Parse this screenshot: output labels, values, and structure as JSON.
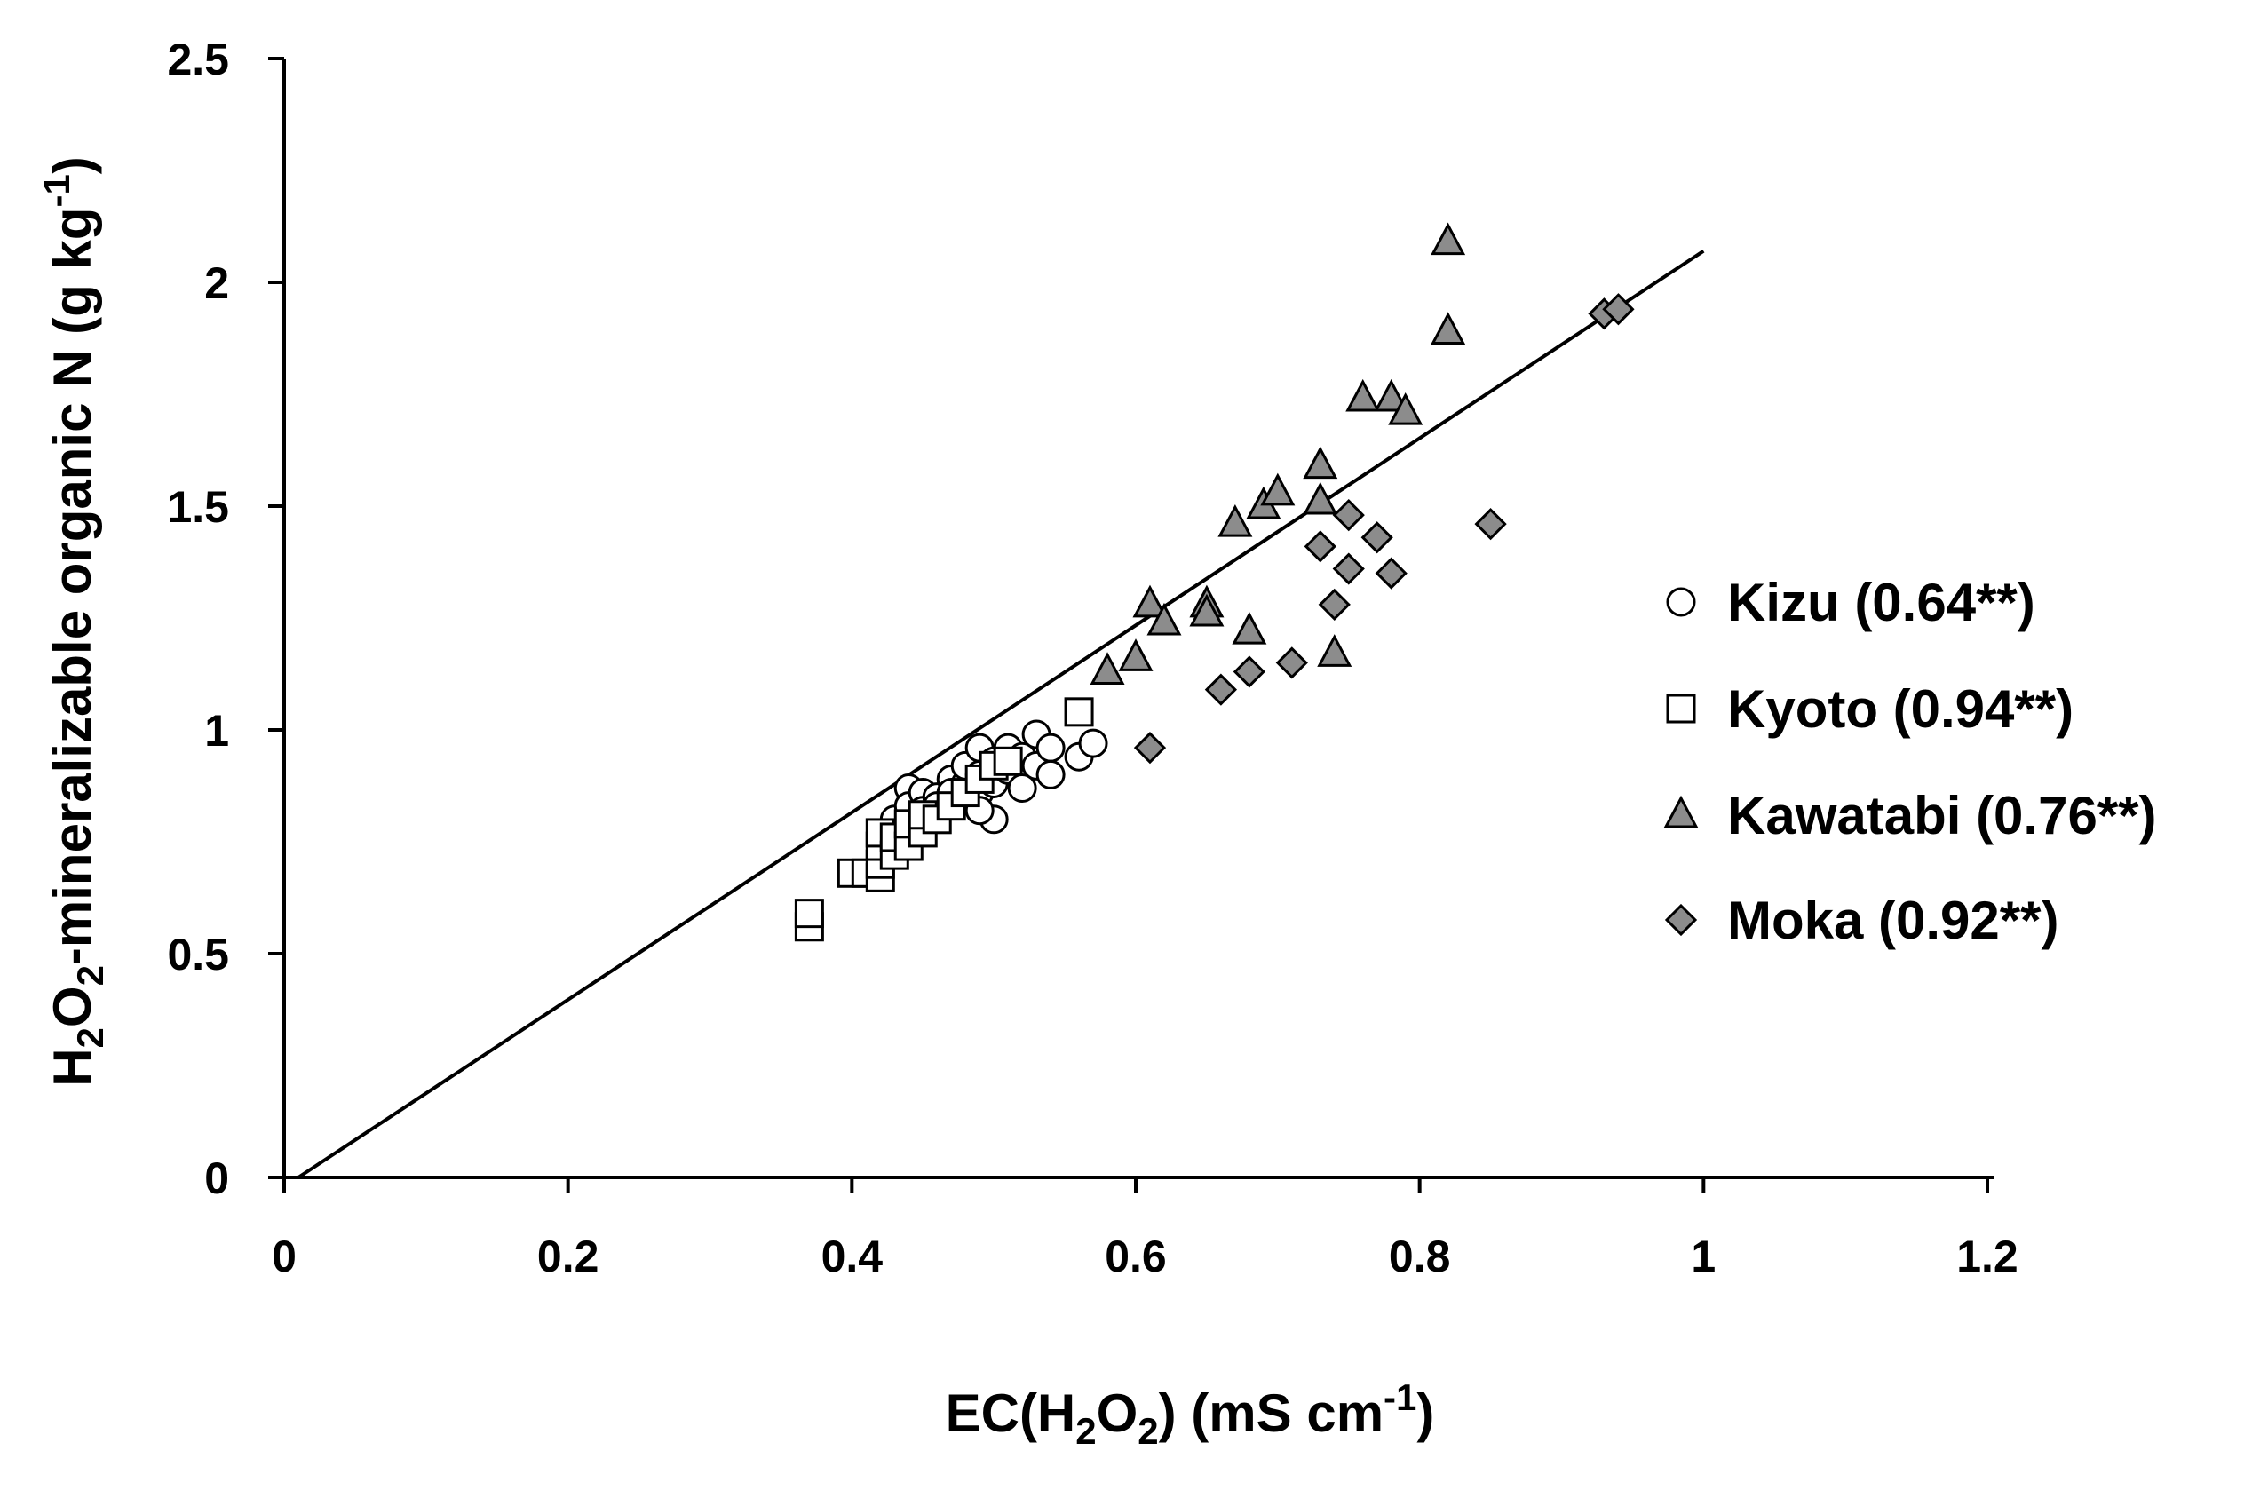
{
  "chart_data": {
    "type": "scatter",
    "xlabel": {
      "prefix": "EC(H",
      "sub1": "2",
      "mid": "O",
      "sub2": "2",
      "suffix": ") (mS cm",
      "sup": "-1",
      "close": ")"
    },
    "ylabel": {
      "prefix": "H",
      "sub1": "2",
      "mid": "O",
      "sub2": "2",
      "suffix": "-mineralizable organic N (g kg",
      "sup": "-1",
      "close": ")"
    },
    "xlim": [
      0,
      1.2
    ],
    "ylim": [
      0,
      2.5
    ],
    "x_ticks": [
      0,
      0.2,
      0.4,
      0.6,
      0.8,
      1.0,
      1.2
    ],
    "x_tick_labels": [
      "0",
      "0.2",
      "0.4",
      "0.6",
      "0.8",
      "1",
      "1.2"
    ],
    "y_ticks": [
      0,
      0.5,
      1.0,
      1.5,
      2.0,
      2.5
    ],
    "y_tick_labels": [
      "0",
      "0.5",
      "1",
      "1.5",
      "2",
      "2.5"
    ],
    "grid": false,
    "legend_position": "right",
    "regression_line": {
      "x": [
        0.01,
        1.0
      ],
      "y": [
        0.0,
        2.07
      ]
    },
    "series": [
      {
        "name": "Kizu (0.64**)",
        "marker": "circle",
        "fill": "#ffffff",
        "points": [
          [
            0.43,
            0.8
          ],
          [
            0.44,
            0.87
          ],
          [
            0.44,
            0.83
          ],
          [
            0.45,
            0.86
          ],
          [
            0.45,
            0.82
          ],
          [
            0.46,
            0.85
          ],
          [
            0.46,
            0.83
          ],
          [
            0.47,
            0.89
          ],
          [
            0.47,
            0.84
          ],
          [
            0.48,
            0.88
          ],
          [
            0.48,
            0.92
          ],
          [
            0.48,
            0.85
          ],
          [
            0.49,
            0.96
          ],
          [
            0.49,
            0.9
          ],
          [
            0.49,
            0.86
          ],
          [
            0.5,
            0.93
          ],
          [
            0.5,
            0.88
          ],
          [
            0.5,
            0.8
          ],
          [
            0.51,
            0.96
          ],
          [
            0.51,
            0.91
          ],
          [
            0.52,
            0.94
          ],
          [
            0.52,
            0.87
          ],
          [
            0.53,
            0.99
          ],
          [
            0.53,
            0.92
          ],
          [
            0.54,
            0.96
          ],
          [
            0.54,
            0.9
          ],
          [
            0.56,
            0.94
          ],
          [
            0.57,
            0.97
          ],
          [
            0.49,
            0.82
          ],
          [
            0.47,
            0.86
          ]
        ]
      },
      {
        "name": "Kyoto (0.94**)",
        "marker": "square",
        "fill": "#ffffff",
        "points": [
          [
            0.37,
            0.56
          ],
          [
            0.37,
            0.59
          ],
          [
            0.4,
            0.68
          ],
          [
            0.41,
            0.68
          ],
          [
            0.42,
            0.67
          ],
          [
            0.42,
            0.7
          ],
          [
            0.42,
            0.74
          ],
          [
            0.42,
            0.77
          ],
          [
            0.43,
            0.72
          ],
          [
            0.43,
            0.76
          ],
          [
            0.44,
            0.74
          ],
          [
            0.44,
            0.79
          ],
          [
            0.45,
            0.77
          ],
          [
            0.45,
            0.81
          ],
          [
            0.46,
            0.8
          ],
          [
            0.47,
            0.83
          ],
          [
            0.48,
            0.86
          ],
          [
            0.49,
            0.89
          ],
          [
            0.5,
            0.92
          ],
          [
            0.51,
            0.93
          ],
          [
            0.56,
            1.04
          ]
        ]
      },
      {
        "name": "Kawatabi (0.76**)",
        "marker": "triangle",
        "fill": "#8c8c8c",
        "points": [
          [
            0.58,
            1.13
          ],
          [
            0.6,
            1.16
          ],
          [
            0.61,
            1.28
          ],
          [
            0.62,
            1.24
          ],
          [
            0.65,
            1.28
          ],
          [
            0.65,
            1.26
          ],
          [
            0.67,
            1.46
          ],
          [
            0.68,
            1.22
          ],
          [
            0.69,
            1.5
          ],
          [
            0.7,
            1.53
          ],
          [
            0.73,
            1.59
          ],
          [
            0.73,
            1.51
          ],
          [
            0.74,
            1.17
          ],
          [
            0.76,
            1.74
          ],
          [
            0.78,
            1.74
          ],
          [
            0.79,
            1.71
          ],
          [
            0.82,
            2.09
          ],
          [
            0.82,
            1.89
          ]
        ]
      },
      {
        "name": "Moka (0.92**)",
        "marker": "diamond",
        "fill": "#8c8c8c",
        "points": [
          [
            0.61,
            0.96
          ],
          [
            0.66,
            1.09
          ],
          [
            0.68,
            1.13
          ],
          [
            0.71,
            1.15
          ],
          [
            0.73,
            1.41
          ],
          [
            0.74,
            1.28
          ],
          [
            0.75,
            1.48
          ],
          [
            0.75,
            1.36
          ],
          [
            0.77,
            1.43
          ],
          [
            0.78,
            1.35
          ],
          [
            0.85,
            1.46
          ],
          [
            0.93,
            1.93
          ],
          [
            0.94,
            1.94
          ]
        ]
      }
    ]
  }
}
